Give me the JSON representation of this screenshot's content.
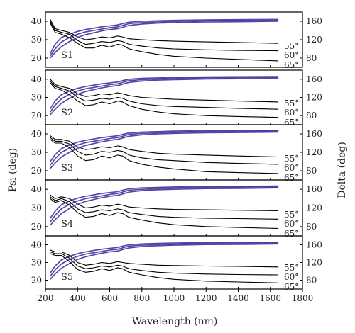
{
  "chart_data": {
    "type": "line",
    "xlabel": "Wavelength (nm)",
    "ylabel_left": "Psi (deg)",
    "ylabel_right": "Delta (deg)",
    "xlim": [
      200,
      1800
    ],
    "x_ticks": [
      "200",
      "400",
      "600",
      "800",
      "1000",
      "1200",
      "1400",
      "1600",
      "1800"
    ],
    "x_tick_values": [
      200,
      400,
      600,
      800,
      1000,
      1200,
      1400,
      1600,
      1800
    ],
    "psi_lim": [
      15,
      45
    ],
    "psi_ticks": [
      "20",
      "30",
      "40"
    ],
    "psi_tick_values": [
      20,
      30,
      40
    ],
    "delta_lim": [
      60,
      180
    ],
    "delta_ticks": [
      "80",
      "120",
      "160"
    ],
    "delta_tick_values": [
      80,
      120,
      160
    ],
    "angles": [
      "55°",
      "60°",
      "65°"
    ],
    "colors": {
      "psi_measured": "#cc6633",
      "psi_fit": "#000000",
      "delta_measured": "#3333aa",
      "delta_fit": "#6a4c9c",
      "frame": "#000000"
    },
    "panels": [
      {
        "label": "S1",
        "x": [
          230,
          260,
          300,
          350,
          400,
          450,
          500,
          550,
          600,
          650,
          680,
          720,
          800,
          900,
          1000,
          1200,
          1400,
          1650
        ],
        "psi": {
          "55°": [
            41,
            36,
            35,
            34,
            31.5,
            30,
            30.5,
            31.5,
            31,
            32,
            31.5,
            30.5,
            30,
            29.5,
            29.2,
            28.8,
            28.5,
            28
          ],
          "60°": [
            40,
            35,
            34,
            33,
            29.5,
            27.5,
            28,
            29,
            28.5,
            29.5,
            29,
            27.5,
            26.5,
            25.5,
            25,
            24.5,
            24.2,
            24
          ],
          "65°": [
            39,
            34,
            33,
            31,
            28,
            25.5,
            25.5,
            27,
            26,
            27.5,
            27,
            25,
            23.5,
            22,
            21,
            20,
            19.3,
            18.5
          ]
        },
        "delta": {
          "55°": [
            90,
            110,
            125,
            132,
            138,
            142,
            145,
            148,
            150,
            152,
            155,
            158,
            160,
            161,
            162,
            163,
            163.5,
            164
          ],
          "60°": [
            85,
            100,
            115,
            125,
            132,
            137,
            140,
            143,
            146,
            148,
            151,
            155,
            157,
            158.5,
            159.5,
            161,
            161.5,
            162
          ],
          "65°": [
            80,
            92,
            105,
            116,
            125,
            131,
            135,
            139,
            142,
            144,
            147,
            151,
            154,
            156,
            157,
            158.5,
            159,
            160
          ]
        }
      },
      {
        "label": "S2",
        "x": [
          230,
          260,
          300,
          350,
          400,
          450,
          500,
          550,
          600,
          650,
          680,
          720,
          800,
          900,
          1000,
          1200,
          1400,
          1650
        ],
        "psi": {
          "55°": [
            40,
            37,
            36,
            35,
            32,
            30.5,
            31,
            32,
            31.5,
            32.5,
            32,
            31,
            30,
            29.5,
            29,
            28.5,
            28,
            27.5
          ],
          "60°": [
            39,
            36,
            35,
            33.5,
            30,
            28,
            28.5,
            29.5,
            29,
            30,
            29.5,
            28,
            26.5,
            25.5,
            25,
            24.5,
            24,
            23.5
          ],
          "65°": [
            38,
            35,
            34,
            31.5,
            28,
            25.5,
            26,
            27.5,
            26.5,
            28,
            27.5,
            25.5,
            23.5,
            22,
            21,
            20,
            19.5,
            19
          ]
        },
        "delta": {
          "55°": [
            95,
            112,
            126,
            134,
            140,
            144,
            147,
            150,
            152,
            154,
            157,
            160,
            162,
            163,
            164,
            165,
            165.5,
            166
          ],
          "60°": [
            88,
            103,
            117,
            127,
            134,
            139,
            142,
            145,
            148,
            150,
            153,
            157,
            159,
            160.5,
            161.5,
            163,
            163.5,
            164
          ],
          "65°": [
            82,
            94,
            107,
            118,
            127,
            133,
            137,
            141,
            144,
            146,
            149,
            153,
            156,
            158,
            159,
            160.5,
            161,
            162
          ]
        }
      },
      {
        "label": "S3",
        "x": [
          230,
          260,
          300,
          350,
          400,
          450,
          500,
          550,
          600,
          650,
          680,
          720,
          800,
          900,
          1000,
          1200,
          1400,
          1650
        ],
        "psi": {
          "55°": [
            39,
            37,
            37,
            36,
            33,
            31.5,
            32,
            33,
            32.5,
            33.5,
            33,
            31.5,
            30.5,
            29.5,
            29,
            28.5,
            28,
            27.5
          ],
          "60°": [
            38,
            36,
            36,
            34.5,
            30.5,
            28.5,
            29,
            30.5,
            30,
            31,
            30.5,
            28.5,
            27,
            26,
            25.5,
            24.5,
            24,
            23.5
          ],
          "65°": [
            37,
            35,
            35,
            32.5,
            28,
            25.5,
            26,
            28,
            27,
            28.5,
            28,
            25.5,
            23.5,
            22,
            21,
            19.5,
            19,
            18.5
          ]
        },
        "delta": {
          "55°": [
            100,
            115,
            128,
            136,
            142,
            146,
            149,
            152,
            154,
            156,
            159,
            162,
            164,
            165,
            166,
            167,
            167.5,
            168
          ],
          "60°": [
            92,
            106,
            120,
            129,
            136,
            141,
            144,
            147,
            150,
            152,
            155,
            159,
            161,
            162.5,
            163.5,
            165,
            165.5,
            166
          ],
          "65°": [
            85,
            97,
            110,
            120,
            129,
            135,
            139,
            143,
            146,
            148,
            151,
            155,
            158,
            160,
            161,
            162.5,
            163,
            164
          ]
        }
      },
      {
        "label": "S4",
        "x": [
          230,
          260,
          300,
          350,
          400,
          450,
          500,
          550,
          600,
          650,
          680,
          720,
          800,
          900,
          1000,
          1200,
          1400,
          1650
        ],
        "psi": {
          "55°": [
            37,
            35,
            36,
            35,
            32,
            30,
            30.5,
            31.5,
            31,
            32,
            31.5,
            30.5,
            30,
            29.5,
            29.2,
            29,
            28.8,
            28.5
          ],
          "60°": [
            36,
            34,
            35,
            33.5,
            29.5,
            27.5,
            28,
            29,
            28.5,
            29.5,
            29,
            27.5,
            26.5,
            25.5,
            25,
            24.5,
            24.3,
            24
          ],
          "65°": [
            35,
            33,
            34,
            31.5,
            27.5,
            25,
            25.5,
            27,
            26,
            27.5,
            27,
            25,
            23.5,
            22,
            21,
            20,
            19.5,
            19
          ]
        },
        "delta": {
          "55°": [
            98,
            113,
            127,
            135,
            141,
            145,
            148,
            151,
            153,
            155,
            158,
            161,
            163,
            164,
            165,
            166,
            166.5,
            167
          ],
          "60°": [
            90,
            104,
            118,
            128,
            135,
            140,
            143,
            146,
            149,
            151,
            154,
            158,
            160,
            161.5,
            162.5,
            164,
            164.5,
            165
          ],
          "65°": [
            83,
            95,
            108,
            119,
            128,
            134,
            138,
            142,
            145,
            147,
            150,
            154,
            157,
            159,
            160,
            161.5,
            162,
            163
          ]
        }
      },
      {
        "label": "S5",
        "x": [
          230,
          260,
          300,
          350,
          400,
          450,
          500,
          550,
          600,
          650,
          680,
          720,
          800,
          900,
          1000,
          1200,
          1400,
          1650
        ],
        "psi": {
          "55°": [
            37,
            36,
            36,
            34,
            30,
            28.5,
            29,
            30,
            29.5,
            30.5,
            30,
            29.5,
            29,
            28.5,
            28.3,
            28,
            27.8,
            27.5
          ],
          "60°": [
            36,
            35,
            35,
            32.5,
            28,
            26.5,
            27,
            28,
            27.5,
            28.5,
            28,
            26.5,
            25.5,
            24.5,
            24,
            23.5,
            23.2,
            23
          ],
          "65°": [
            35,
            34,
            34,
            30.5,
            26,
            24.5,
            25,
            26.5,
            25.5,
            27,
            26.5,
            24.5,
            23,
            21.5,
            20.5,
            19.5,
            19,
            18.5
          ]
        },
        "delta": {
          "55°": [
            96,
            112,
            126,
            134,
            140,
            144,
            147,
            150,
            152,
            154,
            157,
            160,
            162,
            163,
            164,
            165,
            165.5,
            166
          ],
          "60°": [
            89,
            103,
            117,
            127,
            134,
            139,
            142,
            145,
            148,
            150,
            153,
            157,
            159,
            160.5,
            161.5,
            163,
            163.5,
            164
          ],
          "65°": [
            82,
            94,
            107,
            118,
            127,
            133,
            137,
            141,
            144,
            146,
            149,
            153,
            156,
            158,
            159,
            160.5,
            161,
            162
          ]
        }
      }
    ]
  }
}
